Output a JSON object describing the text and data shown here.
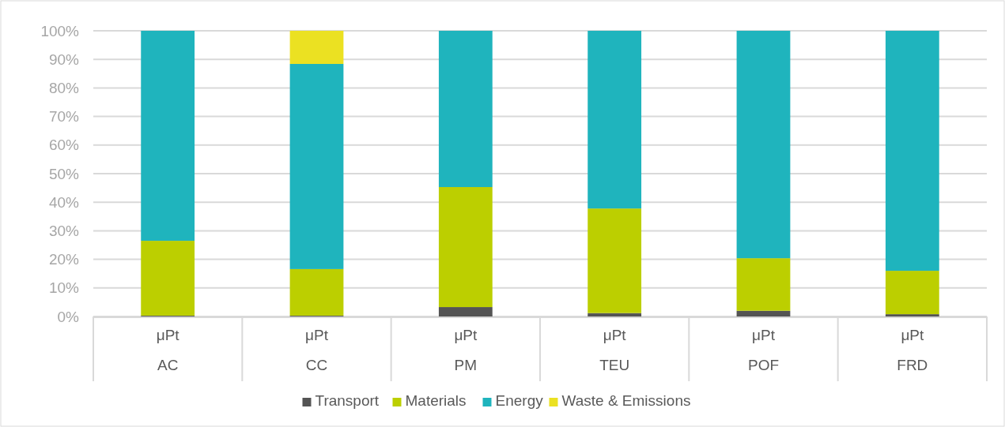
{
  "chart_data": {
    "type": "bar",
    "stacked": true,
    "categories": [
      "μPt\nAC",
      "μPt\nCC",
      "μPt\nPM",
      "μPt\nTEU",
      "μPt\nPOF",
      "μPt\nFRD"
    ],
    "series": [
      {
        "name": "Transport",
        "color": "#545454",
        "values": [
          0.3,
          0.3,
          3.3,
          1.2,
          2.0,
          0.8
        ]
      },
      {
        "name": "Materials",
        "color": "#bccf00",
        "values": [
          26.2,
          16.3,
          42.0,
          36.6,
          18.4,
          15.2
        ]
      },
      {
        "name": "Energy",
        "color": "#1fb4bd",
        "values": [
          73.5,
          71.8,
          54.7,
          62.2,
          79.6,
          84.0
        ]
      },
      {
        "name": "Waste & Emissions",
        "color": "#ebe122",
        "values": [
          0,
          11.6,
          0,
          0,
          0,
          0
        ]
      }
    ],
    "ylim": [
      0,
      100
    ],
    "yticks": [
      {
        "value": 0,
        "label": "0%"
      },
      {
        "value": 10,
        "label": "10%"
      },
      {
        "value": 20,
        "label": "20%"
      },
      {
        "value": 30,
        "label": "30%"
      },
      {
        "value": 40,
        "label": "40%"
      },
      {
        "value": 50,
        "label": "50%"
      },
      {
        "value": 60,
        "label": "60%"
      },
      {
        "value": 70,
        "label": "70%"
      },
      {
        "value": 80,
        "label": "80%"
      },
      {
        "value": 90,
        "label": "90%"
      },
      {
        "value": 100,
        "label": "100%"
      }
    ],
    "grid": "y",
    "legend": "bottom"
  }
}
